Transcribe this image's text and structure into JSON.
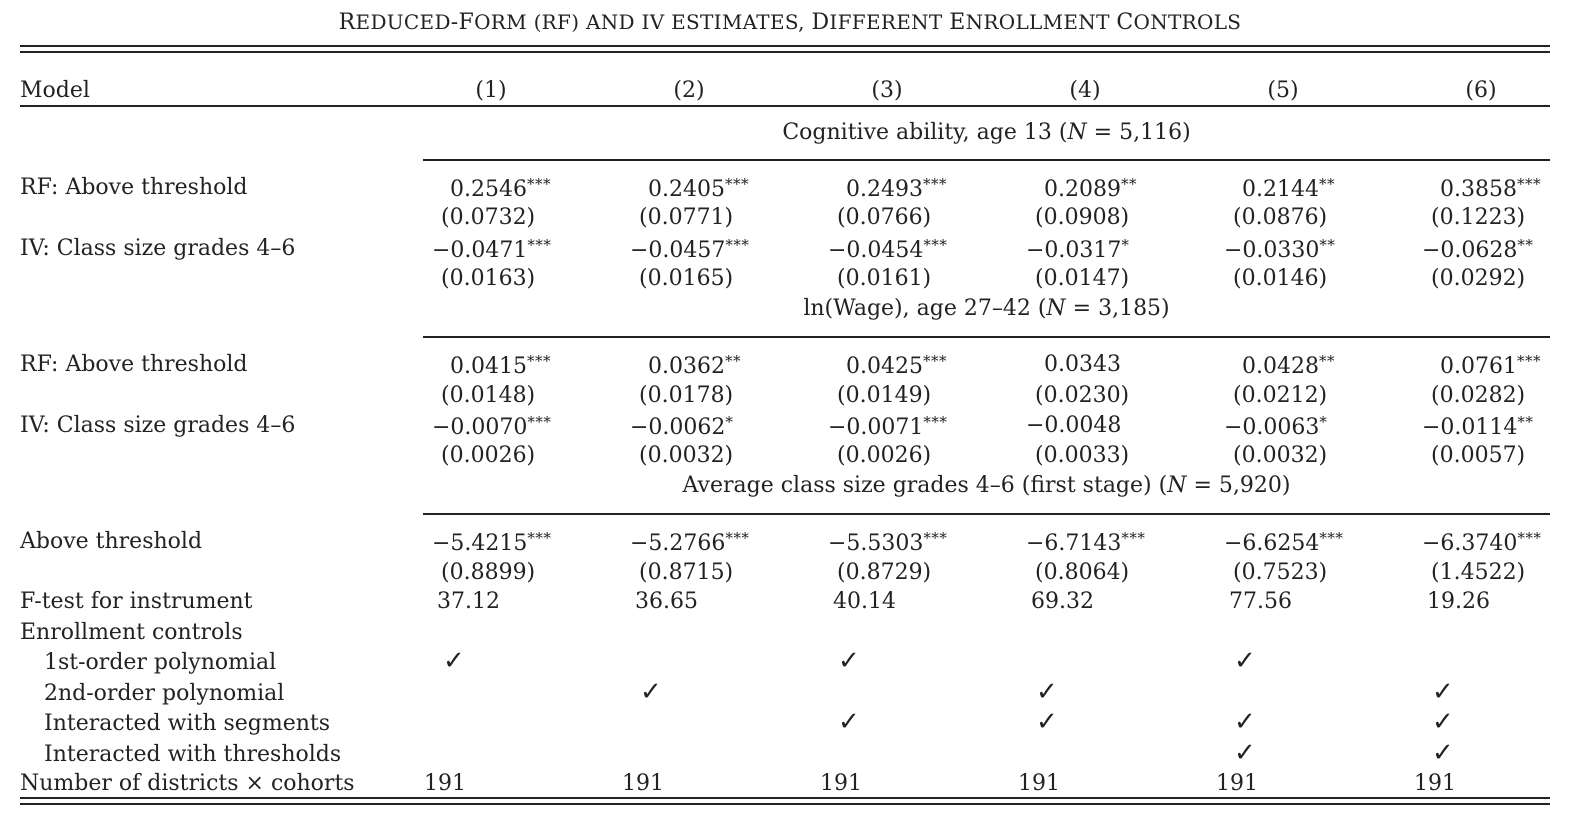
{
  "title": {
    "part1": "R",
    "part2": "EDUCED",
    "part3": "-F",
    "part4": "ORM (RF) AND IV E",
    "part5": "STIMATES, ",
    "part6": "D",
    "part7": "IFFERENT ",
    "part8": "E",
    "part9": "NROLLMENT ",
    "part10": "C",
    "part11": "ONTROLS"
  },
  "header": {
    "model": "Model",
    "cols": [
      "(1)",
      "(2)",
      "(3)",
      "(4)",
      "(5)",
      "(6)"
    ]
  },
  "panels": {
    "p1": {
      "pre": "Cognitive ability, age 13 (",
      "n": "N",
      "post": " = 5,116)"
    },
    "p2": {
      "pre": "ln(Wage), age 27–42 (",
      "n": "N",
      "post": " = 3,185)"
    },
    "p3": {
      "pre": "Average class size grades 4–6 (first stage) (",
      "n": "N",
      "post": " = 5,920)"
    }
  },
  "labels": {
    "rf1": "RF: Above threshold",
    "iv1": "IV: Class size grades 4–6",
    "rf2": "RF: Above threshold",
    "iv2": "IV: Class size grades 4–6",
    "above": "Above threshold",
    "ftest": "F-test for instrument",
    "enroll": "Enrollment controls",
    "poly1": "1st-order polynomial",
    "poly2": "2nd-order polynomial",
    "seg": "Interacted with segments",
    "thr": "Interacted with thresholds",
    "ndc": "Number of districts × cohorts"
  },
  "rows": {
    "rf1": {
      "v": [
        "0.2546",
        "0.2405",
        "0.2493",
        "0.2089",
        "0.2144",
        "0.3858"
      ],
      "s": [
        "***",
        "***",
        "***",
        "**",
        "**",
        "***"
      ]
    },
    "rf1se": [
      "(0.0732)",
      "(0.0771)",
      "(0.0766)",
      "(0.0908)",
      "(0.0876)",
      "(0.1223)"
    ],
    "iv1": {
      "v": [
        "−0.0471",
        "−0.0457",
        "−0.0454",
        "−0.0317",
        "−0.0330",
        "−0.0628"
      ],
      "s": [
        "***",
        "***",
        "***",
        "*",
        "**",
        "**"
      ]
    },
    "iv1se": [
      "(0.0163)",
      "(0.0165)",
      "(0.0161)",
      "(0.0147)",
      "(0.0146)",
      "(0.0292)"
    ],
    "rf2": {
      "v": [
        "0.0415",
        "0.0362",
        "0.0425",
        "0.0343",
        "0.0428",
        "0.0761"
      ],
      "s": [
        "***",
        "**",
        "***",
        "",
        "**",
        "***"
      ]
    },
    "rf2se": [
      "(0.0148)",
      "(0.0178)",
      "(0.0149)",
      "(0.0230)",
      "(0.0212)",
      "(0.0282)"
    ],
    "iv2": {
      "v": [
        "−0.0070",
        "−0.0062",
        "−0.0071",
        "−0.0048",
        "−0.0063",
        "−0.0114"
      ],
      "s": [
        "***",
        "*",
        "***",
        "",
        "*",
        "**"
      ]
    },
    "iv2se": [
      "(0.0026)",
      "(0.0032)",
      "(0.0026)",
      "(0.0033)",
      "(0.0032)",
      "(0.0057)"
    ],
    "fs": {
      "v": [
        "−5.4215",
        "−5.2766",
        "−5.5303",
        "−6.7143",
        "−6.6254",
        "−6.3740"
      ],
      "s": [
        "***",
        "***",
        "***",
        "***",
        "***",
        "***"
      ]
    },
    "fsse": [
      "(0.8899)",
      "(0.8715)",
      "(0.8729)",
      "(0.8064)",
      "(0.7523)",
      "(1.4522)"
    ],
    "ftest": [
      "37.12",
      "36.65",
      "40.14",
      "69.32",
      "77.56",
      "19.26"
    ],
    "ndc": [
      "191",
      "191",
      "191",
      "191",
      "191",
      "191"
    ]
  },
  "checkmark": "✓",
  "checks": {
    "poly1": [
      true,
      false,
      true,
      false,
      true,
      false
    ],
    "poly2": [
      false,
      true,
      false,
      true,
      false,
      true
    ],
    "seg": [
      false,
      false,
      true,
      true,
      true,
      true
    ],
    "thr": [
      false,
      false,
      false,
      false,
      true,
      true
    ]
  }
}
